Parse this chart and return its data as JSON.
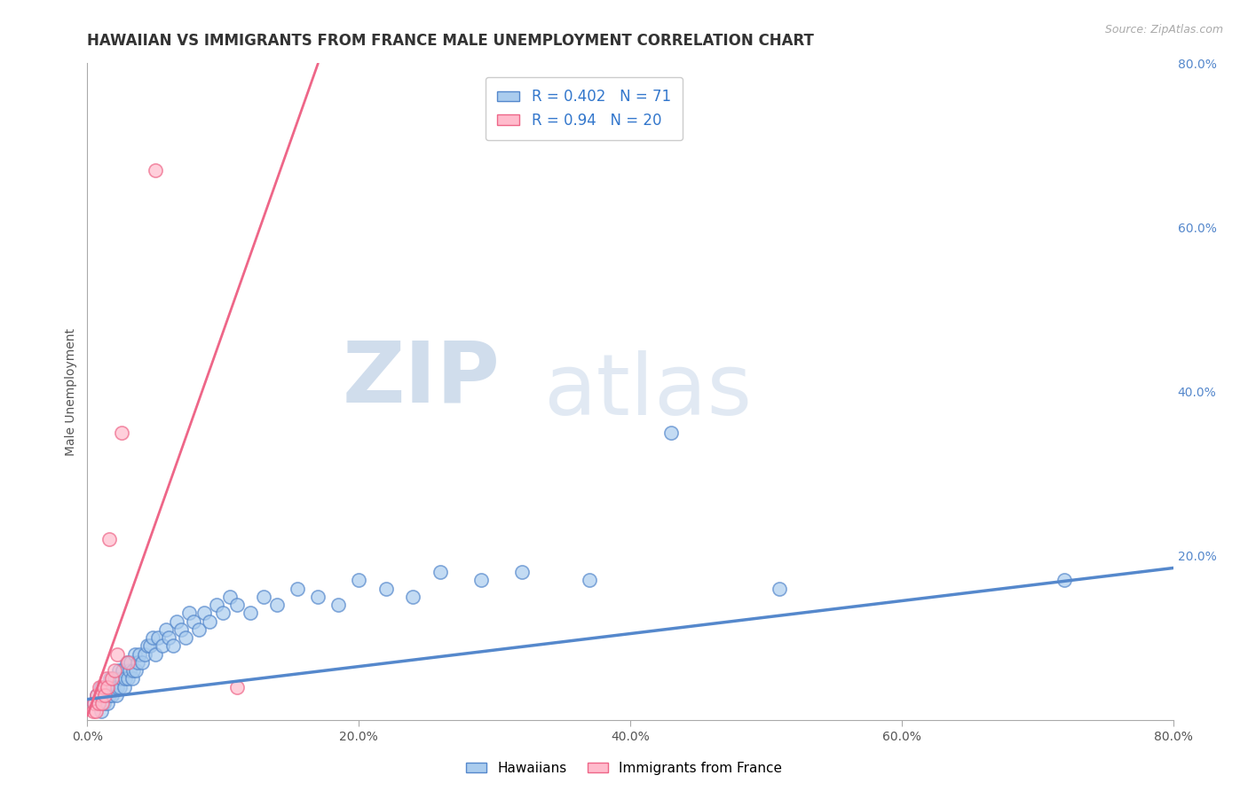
{
  "title": "HAWAIIAN VS IMMIGRANTS FROM FRANCE MALE UNEMPLOYMENT CORRELATION CHART",
  "source_text": "Source: ZipAtlas.com",
  "ylabel": "Male Unemployment",
  "xlabel": "",
  "watermark_zip": "ZIP",
  "watermark_atlas": "atlas",
  "xlim": [
    0,
    0.8
  ],
  "ylim": [
    0,
    0.8
  ],
  "xticks": [
    0.0,
    0.2,
    0.4,
    0.6,
    0.8
  ],
  "yticks": [
    0.0,
    0.2,
    0.4,
    0.6,
    0.8
  ],
  "xtick_labels": [
    "0.0%",
    "20.0%",
    "40.0%",
    "60.0%",
    "80.0%"
  ],
  "ytick_labels": [
    "",
    "20.0%",
    "40.0%",
    "60.0%",
    "80.0%"
  ],
  "background_color": "#ffffff",
  "grid_color": "#cccccc",
  "blue_color": "#5588cc",
  "blue_color_edge": "#4477bb",
  "pink_color": "#ee6688",
  "pink_color_edge": "#dd5577",
  "blue_fill": "#aaccee",
  "pink_fill": "#ffbbcc",
  "blue_R": 0.402,
  "blue_N": 71,
  "pink_R": 0.94,
  "pink_N": 20,
  "legend_label_blue": "Hawaiians",
  "legend_label_pink": "Immigrants from France",
  "title_fontsize": 12,
  "axis_label_fontsize": 10,
  "tick_fontsize": 10,
  "legend_fontsize": 12,
  "blue_scatter_x": [
    0.005,
    0.007,
    0.008,
    0.01,
    0.01,
    0.012,
    0.013,
    0.014,
    0.015,
    0.016,
    0.017,
    0.018,
    0.019,
    0.02,
    0.021,
    0.022,
    0.023,
    0.024,
    0.025,
    0.026,
    0.027,
    0.028,
    0.029,
    0.03,
    0.031,
    0.032,
    0.033,
    0.034,
    0.035,
    0.036,
    0.037,
    0.038,
    0.04,
    0.042,
    0.044,
    0.046,
    0.048,
    0.05,
    0.052,
    0.055,
    0.058,
    0.06,
    0.063,
    0.066,
    0.069,
    0.072,
    0.075,
    0.078,
    0.082,
    0.086,
    0.09,
    0.095,
    0.1,
    0.105,
    0.11,
    0.12,
    0.13,
    0.14,
    0.155,
    0.17,
    0.185,
    0.2,
    0.22,
    0.24,
    0.26,
    0.29,
    0.32,
    0.37,
    0.43,
    0.51,
    0.72
  ],
  "blue_scatter_y": [
    0.02,
    0.03,
    0.02,
    0.01,
    0.04,
    0.02,
    0.03,
    0.04,
    0.02,
    0.03,
    0.05,
    0.03,
    0.04,
    0.05,
    0.03,
    0.04,
    0.06,
    0.04,
    0.05,
    0.06,
    0.04,
    0.05,
    0.07,
    0.05,
    0.06,
    0.07,
    0.05,
    0.06,
    0.08,
    0.06,
    0.07,
    0.08,
    0.07,
    0.08,
    0.09,
    0.09,
    0.1,
    0.08,
    0.1,
    0.09,
    0.11,
    0.1,
    0.09,
    0.12,
    0.11,
    0.1,
    0.13,
    0.12,
    0.11,
    0.13,
    0.12,
    0.14,
    0.13,
    0.15,
    0.14,
    0.13,
    0.15,
    0.14,
    0.16,
    0.15,
    0.14,
    0.17,
    0.16,
    0.15,
    0.18,
    0.17,
    0.18,
    0.17,
    0.35,
    0.16,
    0.17
  ],
  "pink_scatter_x": [
    0.004,
    0.005,
    0.006,
    0.007,
    0.008,
    0.009,
    0.01,
    0.011,
    0.012,
    0.013,
    0.014,
    0.015,
    0.016,
    0.018,
    0.02,
    0.022,
    0.025,
    0.03,
    0.05,
    0.11
  ],
  "pink_scatter_y": [
    0.01,
    0.02,
    0.01,
    0.03,
    0.02,
    0.04,
    0.03,
    0.02,
    0.04,
    0.03,
    0.05,
    0.04,
    0.22,
    0.05,
    0.06,
    0.08,
    0.35,
    0.07,
    0.67,
    0.04
  ],
  "blue_trend_x": [
    0.0,
    0.8
  ],
  "blue_trend_y": [
    0.025,
    0.185
  ],
  "pink_trend_x": [
    0.0,
    0.17
  ],
  "pink_trend_y": [
    0.005,
    0.8
  ]
}
